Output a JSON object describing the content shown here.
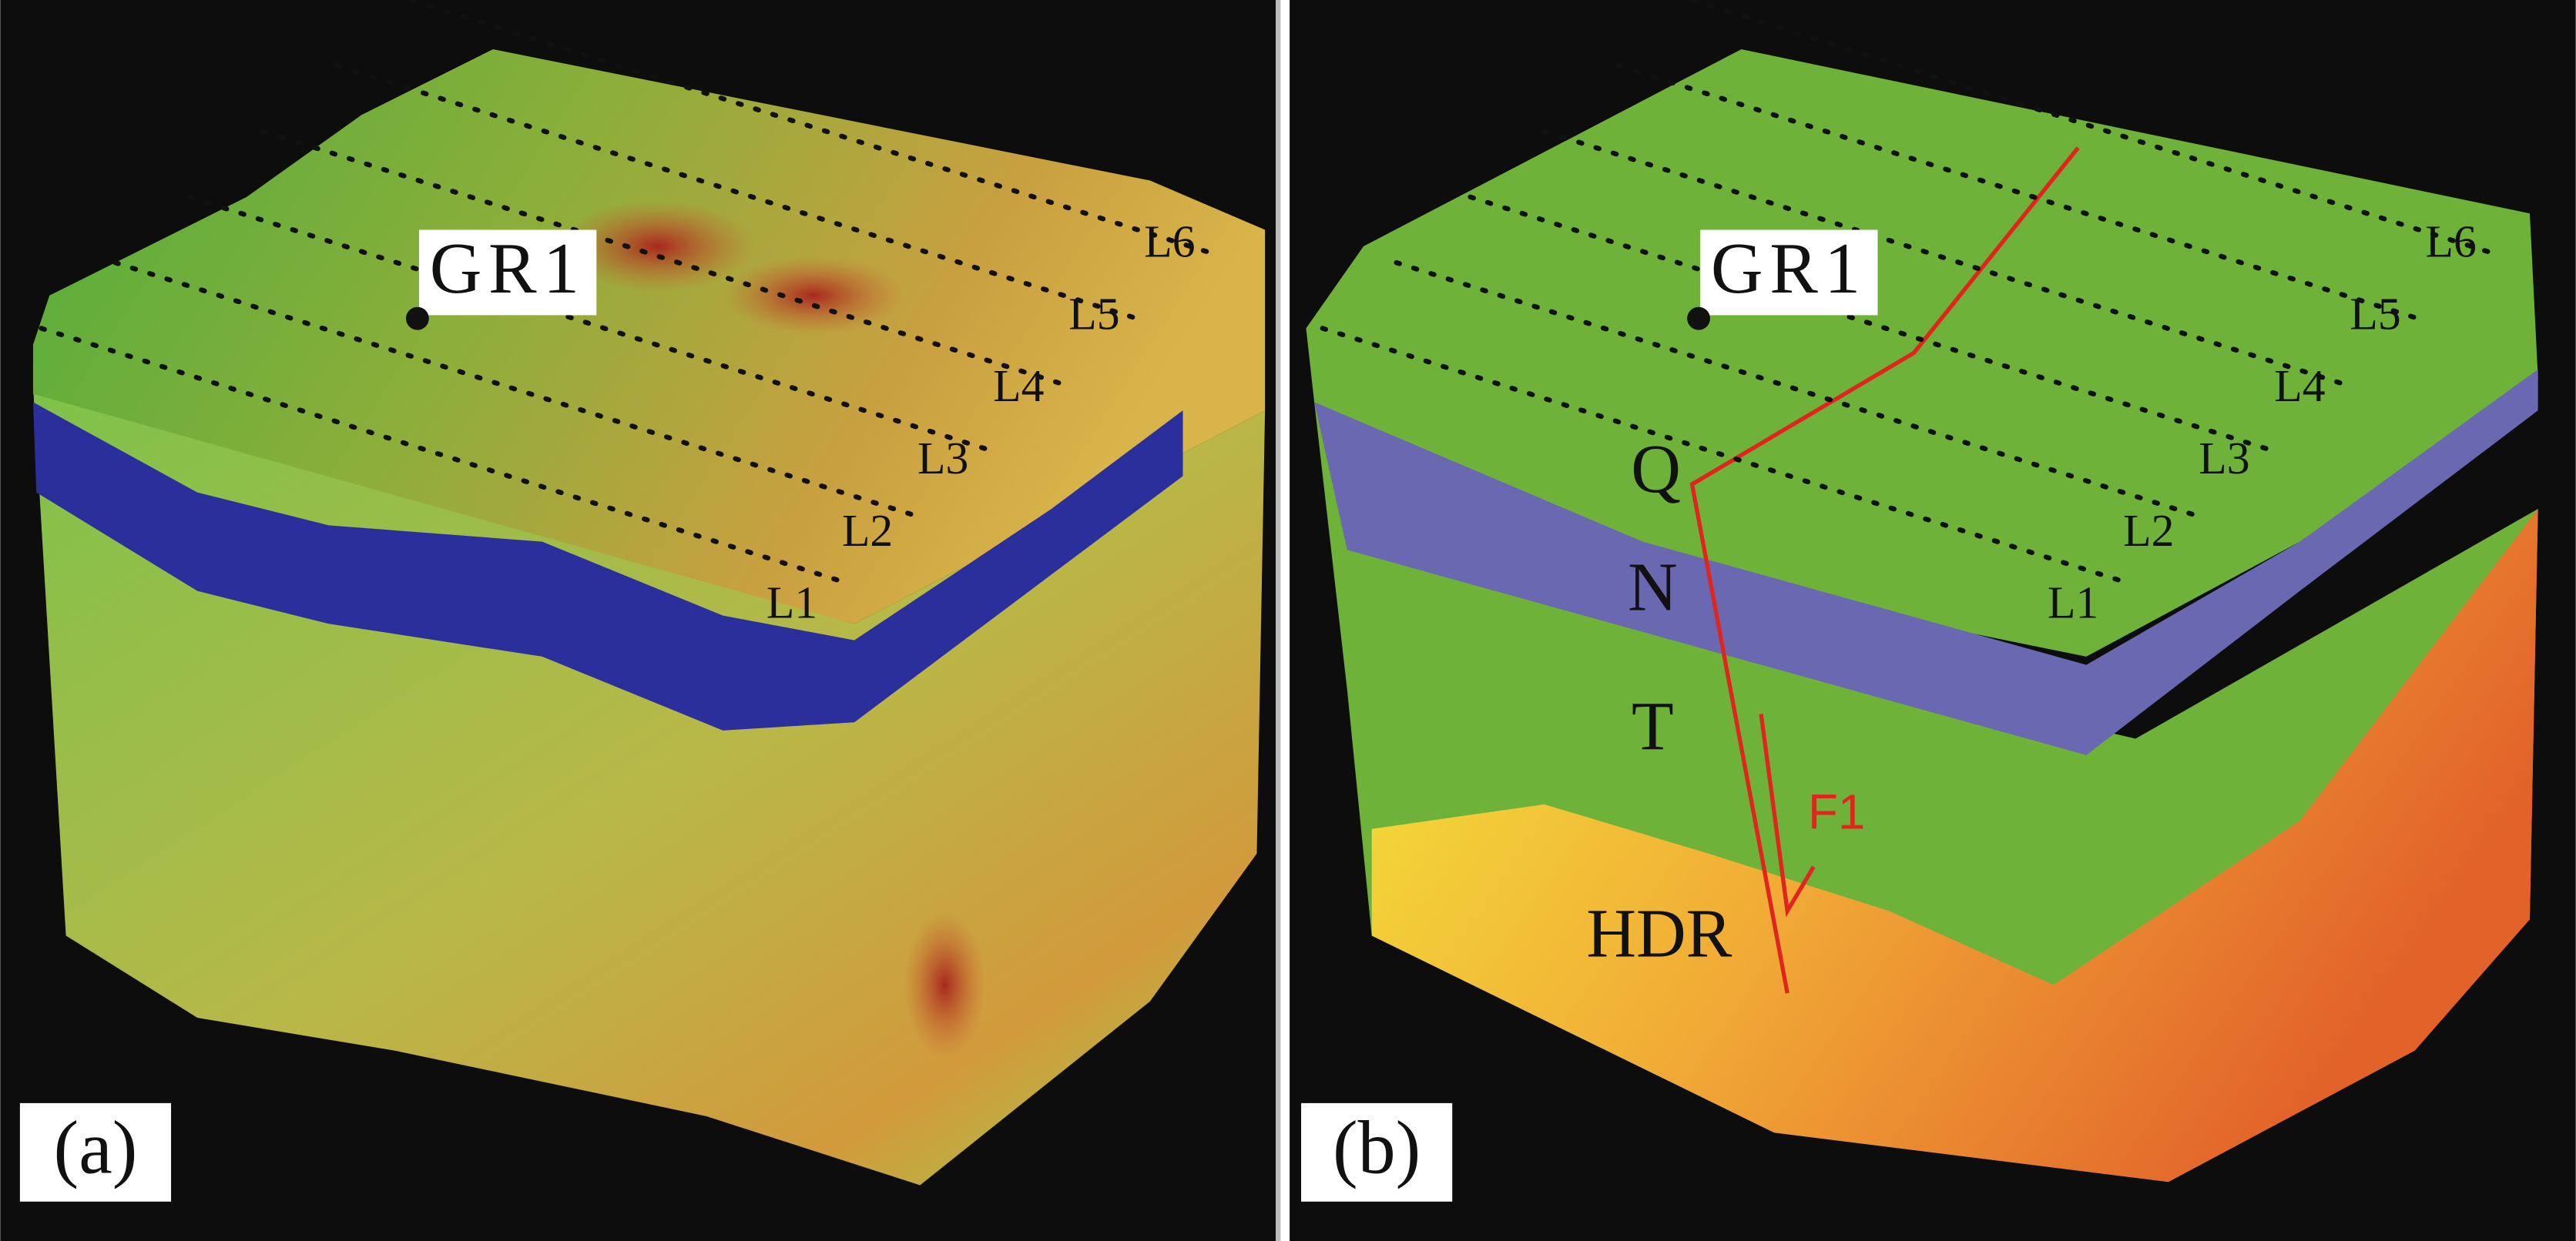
{
  "panels": [
    {
      "label": "(a)",
      "well": "GR1",
      "lines": [
        "L1",
        "L2",
        "L3",
        "L4",
        "L5",
        "L6"
      ]
    },
    {
      "label": "(b)",
      "well": "GR1",
      "lines": [
        "L1",
        "L2",
        "L3",
        "L4",
        "L5",
        "L6"
      ],
      "layers": [
        "Q",
        "N",
        "T",
        "HDR"
      ],
      "fault": "F1"
    }
  ]
}
